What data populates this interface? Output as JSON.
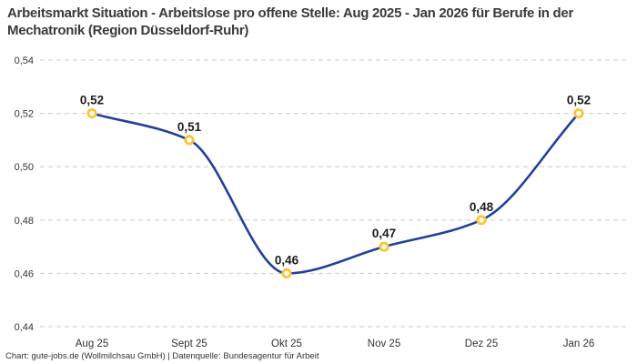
{
  "title": "Arbeitsmarkt Situation - Arbeitslose pro offene Stelle: Aug 2025 - Jan 2026 für Berufe in der Mechatronik (Region Düsseldorf-Ruhr)",
  "footer": "Chart: gute-jobs.de (Wollmilchsau GmbH) | Datenquelle: Bundesagentur für Arbeit",
  "chart_data": {
    "type": "line",
    "title": "Arbeitsmarkt Situation - Arbeitslose pro offene Stelle: Aug 2025 - Jan 2026 für Berufe in der Mechatronik (Region Düsseldorf-Ruhr)",
    "categories": [
      "Aug 25",
      "Sept 25",
      "Okt 25",
      "Nov 25",
      "Dez 25",
      "Jan 26"
    ],
    "values": [
      0.52,
      0.51,
      0.46,
      0.47,
      0.48,
      0.52
    ],
    "value_labels": [
      "0,52",
      "0,51",
      "0,46",
      "0,47",
      "0,48",
      "0,52"
    ],
    "xlabel": "",
    "ylabel": "",
    "ylim": [
      0.44,
      0.54
    ],
    "yticks": [
      0.44,
      0.46,
      0.48,
      0.5,
      0.52,
      0.54
    ],
    "ytick_labels": [
      "0,44",
      "0,46",
      "0,48",
      "0,50",
      "0,52",
      "0,54"
    ],
    "grid": "horizontal-dashed",
    "legend": "none",
    "curve": "monotone",
    "colors": {
      "line": "#21409a",
      "marker_ring": "#fcc433",
      "marker_fill": "#ffffff",
      "grid": "#cccccc",
      "tick_text": "#333333",
      "data_label": "#1d1d1d",
      "title_text": "#3a3a3a",
      "background": "#ffffff"
    }
  }
}
